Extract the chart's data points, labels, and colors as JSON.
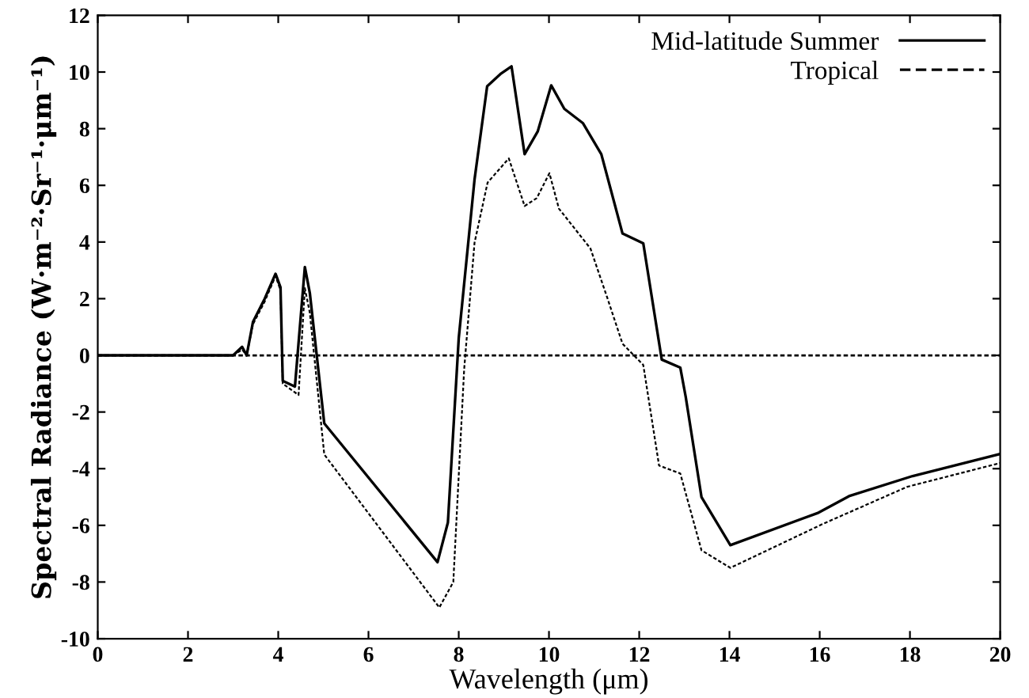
{
  "chart_data": {
    "type": "line",
    "xlabel": "Wavelength (μm)",
    "ylabel": "Spectral Radiance (W·m⁻²·Sr⁻¹·μm⁻¹)",
    "xlim": [
      0,
      20
    ],
    "ylim": [
      -10,
      12
    ],
    "xticks": [
      0,
      2,
      4,
      6,
      8,
      10,
      12,
      14,
      16,
      18,
      20
    ],
    "yticks": [
      -10,
      -8,
      -6,
      -4,
      -2,
      0,
      2,
      4,
      6,
      8,
      10,
      12
    ],
    "grid": false,
    "legend": "top right",
    "ref_lines": [
      {
        "axis": "y",
        "value": 0,
        "color": "#000000",
        "line_style": "dashed"
      }
    ],
    "series": [
      {
        "name": "Mid-latitude Summer",
        "color": "#000000",
        "line_style": "solid",
        "x": [
          0,
          2,
          3,
          3.2,
          3.3,
          3.44,
          3.7,
          3.94,
          4.05,
          4.1,
          4.37,
          4.59,
          4.7,
          5.02,
          7.53,
          7.76,
          8.0,
          8.35,
          8.63,
          8.94,
          9.17,
          9.46,
          9.75,
          10.05,
          10.34,
          10.75,
          11.16,
          11.63,
          12.09,
          12.5,
          12.91,
          13.03,
          13.38,
          14.02,
          15.95,
          16.65,
          18.06,
          20
        ],
        "values": [
          0,
          0,
          0,
          0.3,
          0,
          1.18,
          2.0,
          2.88,
          2.4,
          -0.9,
          -1.1,
          3.12,
          2.2,
          -2.4,
          -7.3,
          -5.9,
          0.6,
          6.2,
          9.5,
          9.95,
          10.2,
          7.1,
          7.9,
          9.53,
          8.7,
          8.2,
          7.1,
          4.3,
          3.95,
          -0.15,
          -0.43,
          -1.46,
          -5.0,
          -6.7,
          -5.57,
          -4.97,
          -4.26,
          -3.48
        ]
      },
      {
        "name": "Tropical",
        "color": "#000000",
        "line_style": "dashed",
        "x": [
          0,
          2,
          3,
          3.2,
          3.3,
          3.44,
          3.7,
          3.94,
          4.05,
          4.1,
          4.45,
          4.59,
          4.7,
          5.02,
          7.57,
          7.88,
          8.12,
          8.35,
          8.64,
          9.11,
          9.46,
          9.73,
          10.01,
          10.22,
          10.92,
          11.28,
          11.63,
          12.09,
          12.44,
          12.91,
          13.38,
          14.02,
          16.07,
          17.94,
          20
        ],
        "values": [
          0,
          0,
          0,
          0.2,
          0,
          1.1,
          1.9,
          2.8,
          2.3,
          -1.0,
          -1.4,
          2.37,
          1.5,
          -3.5,
          -8.9,
          -8.0,
          -0.5,
          3.97,
          6.1,
          6.95,
          5.27,
          5.55,
          6.43,
          5.18,
          3.77,
          2.09,
          0.41,
          -0.34,
          -3.89,
          -4.17,
          -6.88,
          -7.5,
          -5.95,
          -4.64,
          -3.8
        ]
      }
    ]
  }
}
